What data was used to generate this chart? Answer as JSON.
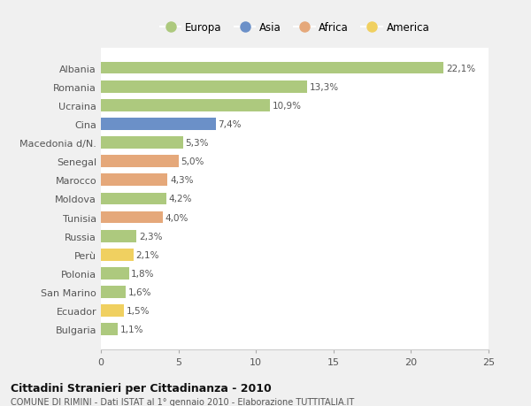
{
  "categories": [
    "Albania",
    "Romania",
    "Ucraina",
    "Cina",
    "Macedonia d/N.",
    "Senegal",
    "Marocco",
    "Moldova",
    "Tunisia",
    "Russia",
    "Perù",
    "Polonia",
    "San Marino",
    "Ecuador",
    "Bulgaria"
  ],
  "values": [
    22.1,
    13.3,
    10.9,
    7.4,
    5.3,
    5.0,
    4.3,
    4.2,
    4.0,
    2.3,
    2.1,
    1.8,
    1.6,
    1.5,
    1.1
  ],
  "continents": [
    "Europa",
    "Europa",
    "Europa",
    "Asia",
    "Europa",
    "Africa",
    "Africa",
    "Europa",
    "Africa",
    "Europa",
    "America",
    "Europa",
    "Europa",
    "America",
    "Europa"
  ],
  "colors": {
    "Europa": "#adc97e",
    "Asia": "#6b90c8",
    "Africa": "#e5a87a",
    "America": "#f0d060"
  },
  "legend_order": [
    "Europa",
    "Asia",
    "Africa",
    "America"
  ],
  "xlim": [
    0,
    25
  ],
  "xticks": [
    0,
    5,
    10,
    15,
    20,
    25
  ],
  "title": "Cittadini Stranieri per Cittadinanza - 2010",
  "subtitle": "COMUNE DI RIMINI - Dati ISTAT al 1° gennaio 2010 - Elaborazione TUTTITALIA.IT",
  "background_color": "#f0f0f0",
  "plot_background": "#ffffff",
  "grid_color": "#ffffff",
  "label_color": "#555555",
  "value_color": "#555555"
}
